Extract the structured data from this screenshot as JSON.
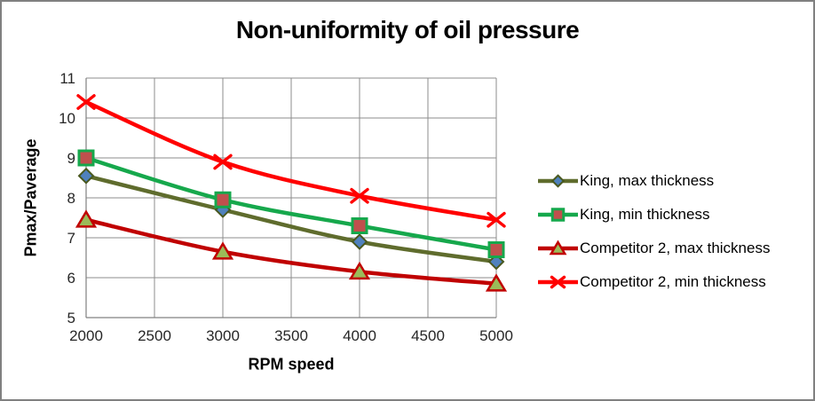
{
  "window": {
    "background": "#FFFFFF",
    "border_color": "#808080"
  },
  "chart_data": {
    "type": "line",
    "title": "Non-uniformity of oil pressure",
    "xlabel": "RPM speed",
    "ylabel": "Pmax/Paverage",
    "x": [
      2000,
      3000,
      4000,
      5000
    ],
    "x_ticks": [
      2000,
      2500,
      3000,
      3500,
      4000,
      4500,
      5000
    ],
    "y_ticks": [
      5,
      6,
      7,
      8,
      9,
      10,
      11
    ],
    "xlim": [
      2000,
      5000
    ],
    "ylim": [
      5,
      11
    ],
    "grid": true,
    "smoothed_lines": true,
    "legend_position": "right",
    "series": [
      {
        "name": "King, max thickness",
        "values": [
          8.55,
          7.7,
          6.9,
          6.4
        ],
        "line_color": "#5F6C2D",
        "marker": "diamond",
        "marker_fill": "#4F81BD",
        "marker_stroke": "#49581F"
      },
      {
        "name": "King, min thickness",
        "values": [
          9.0,
          7.95,
          7.3,
          6.7
        ],
        "line_color": "#16A84C",
        "marker": "square",
        "marker_fill": "#C0504D",
        "marker_stroke": "#16A84C"
      },
      {
        "name": "Competitor 2, max thickness",
        "values": [
          7.45,
          6.65,
          6.15,
          5.85
        ],
        "line_color": "#C00000",
        "marker": "triangle",
        "marker_fill": "#9BBB59",
        "marker_stroke": "#C00000"
      },
      {
        "name": "Competitor 2, min thickness",
        "values": [
          10.4,
          8.9,
          8.05,
          7.45
        ],
        "line_color": "#FF0000",
        "marker": "x",
        "marker_fill": "#FF0000",
        "marker_stroke": "#FF0000"
      }
    ],
    "colors": {
      "gridline": "#8C8C8C",
      "axis": "#808080",
      "tick_text": "#262626",
      "title_text": "#000000",
      "legend_text": "#000000"
    }
  }
}
